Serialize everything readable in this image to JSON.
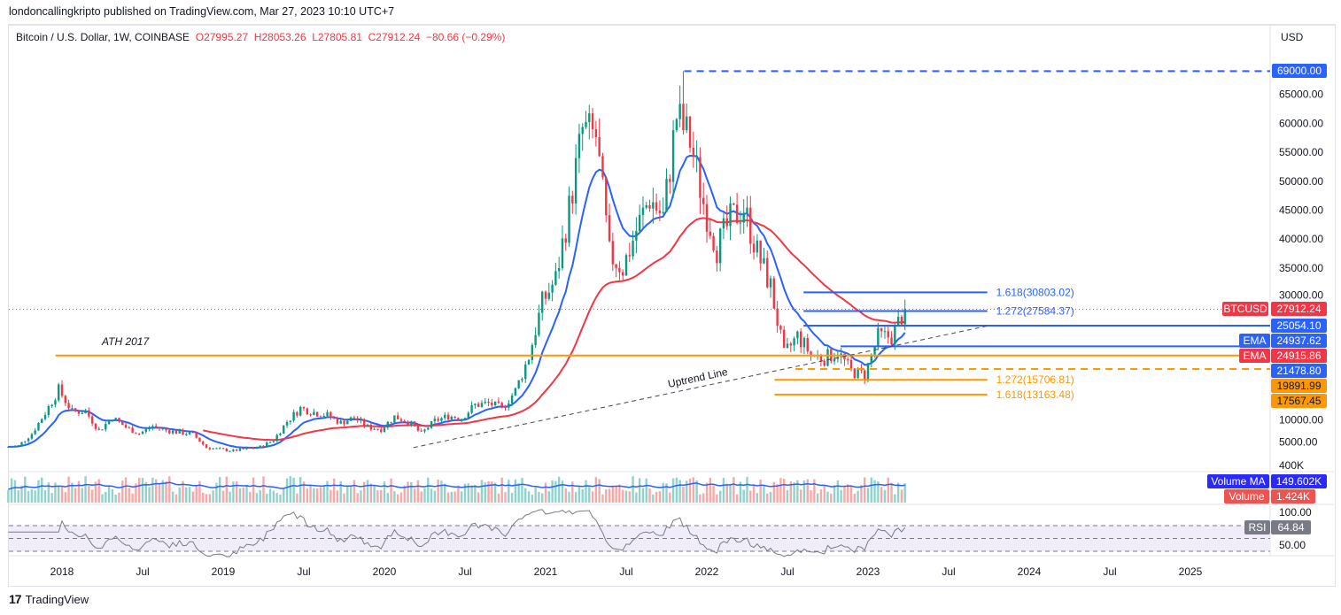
{
  "header": {
    "published": "londoncallingkripto published on TradingView.com, Mar 27, 2023 10:10 UTC+7"
  },
  "legend": {
    "symbol": "Bitcoin / U.S. Dollar, 1W, COINBASE",
    "o": "O27995.27",
    "h": "H28053.26",
    "l": "L27805.81",
    "c": "C27912.24",
    "chg": "−80.66 (−0.29%)"
  },
  "currency": "USD",
  "footer": {
    "brand": "TradingView"
  },
  "colors": {
    "up": "#089981",
    "down": "#f23645",
    "ema_fast": "#2962ff",
    "ema_slow": "#f23645",
    "level_blue": "#2962ff",
    "level_orange": "#ff9800"
  },
  "chart_data": {
    "type": "candlestick",
    "title": "Bitcoin / U.S. Dollar, 1W, COINBASE",
    "start_month": "2017-09",
    "monthly_close": [
      4300,
      6400,
      10000,
      14000,
      10200,
      10300,
      6900,
      9200,
      7500,
      6400,
      7700,
      7000,
      6600,
      6300,
      4000,
      3700,
      3450,
      3800,
      4100,
      5300,
      8500,
      10800,
      10100,
      9600,
      8300,
      9150,
      7550,
      7200,
      9350,
      8550,
      6400,
      8600,
      9450,
      9140,
      11350,
      11650,
      10780,
      13800,
      19700,
      29000,
      33100,
      45200,
      58800,
      57700,
      37300,
      35000,
      41500,
      47100,
      43800,
      61300,
      57000,
      46300,
      38500,
      43200,
      45500,
      37700,
      31800,
      19900,
      23300,
      20050,
      19430,
      20500,
      17170,
      16550,
      23130,
      23150,
      27912
    ],
    "y_ticks": [
      5000,
      10000,
      30000,
      35000,
      40000,
      45000,
      50000,
      55000,
      60000,
      65000
    ],
    "y_tick_labels": [
      "5000.00",
      "10000.00",
      "30000.00",
      "35000.00",
      "40000.00",
      "45000.00",
      "50000.00",
      "55000.00",
      "60000.00",
      "65000.00"
    ],
    "x_ticks": [
      {
        "t": 2018.0,
        "label": "2018"
      },
      {
        "t": 2018.5,
        "label": "Jul"
      },
      {
        "t": 2019.0,
        "label": "2019"
      },
      {
        "t": 2019.5,
        "label": "Jul"
      },
      {
        "t": 2020.0,
        "label": "2020"
      },
      {
        "t": 2020.5,
        "label": "Jul"
      },
      {
        "t": 2021.0,
        "label": "2021"
      },
      {
        "t": 2021.5,
        "label": "Jul"
      },
      {
        "t": 2022.0,
        "label": "2022"
      },
      {
        "t": 2022.5,
        "label": "Jul"
      },
      {
        "t": 2023.0,
        "label": "2023"
      },
      {
        "t": 2023.5,
        "label": "Jul"
      },
      {
        "t": 2024.0,
        "label": "2024"
      },
      {
        "t": 2024.5,
        "label": "Jul"
      },
      {
        "t": 2025.0,
        "label": "2025"
      }
    ],
    "levels": [
      {
        "price": 69000,
        "from": 2021.86,
        "style": "dashed",
        "color": "blue",
        "tag": "69000.00"
      },
      {
        "price": 30803.02,
        "from": 2022.6,
        "to": 2023.74,
        "color": "blue",
        "text": "1.618(30803.02)"
      },
      {
        "price": 27584.37,
        "from": 2022.6,
        "to": 2023.74,
        "color": "blue",
        "text": "1.272(27584.37)"
      },
      {
        "price": 25054.1,
        "from": 2022.6,
        "color": "blue",
        "tag": "25054.10"
      },
      {
        "price": 21478.8,
        "from": 2022.83,
        "color": "blue",
        "tag": "21478.80"
      },
      {
        "price": 19891.99,
        "from": 2017.96,
        "color": "orange",
        "tag": "19891.99",
        "text": "ATH 2017"
      },
      {
        "price": 17567.45,
        "from": 2022.55,
        "style": "dashed",
        "color": "orange",
        "tag": "17567.45"
      },
      {
        "price": 15706.81,
        "from": 2022.42,
        "to": 2023.74,
        "color": "orange",
        "text": "1.272(15706.81)"
      },
      {
        "price": 13163.48,
        "from": 2022.42,
        "to": 2023.74,
        "color": "orange",
        "text": "1.618(13163.48)"
      }
    ],
    "trendline": {
      "label": "Uptrend Line",
      "from": {
        "t": 2020.18,
        "p": 4000
      },
      "to": {
        "t": 2023.74,
        "p": 25000
      }
    },
    "price_tags": [
      {
        "label": "BTCUSD",
        "value": "27912.24",
        "color": "red"
      },
      {
        "label": "EMA",
        "value": "24937.62",
        "color": "blue"
      },
      {
        "label": "EMA",
        "value": "24915.86",
        "color": "red"
      }
    ],
    "volume": {
      "ma_label": "Volume MA",
      "ma_value": "149.602K",
      "label": "Volume",
      "value": "1.424K",
      "axis_label": "400K"
    },
    "rsi": {
      "label": "RSI",
      "value": "64.84",
      "ticks": [
        "100.00",
        "50.00"
      ]
    }
  }
}
